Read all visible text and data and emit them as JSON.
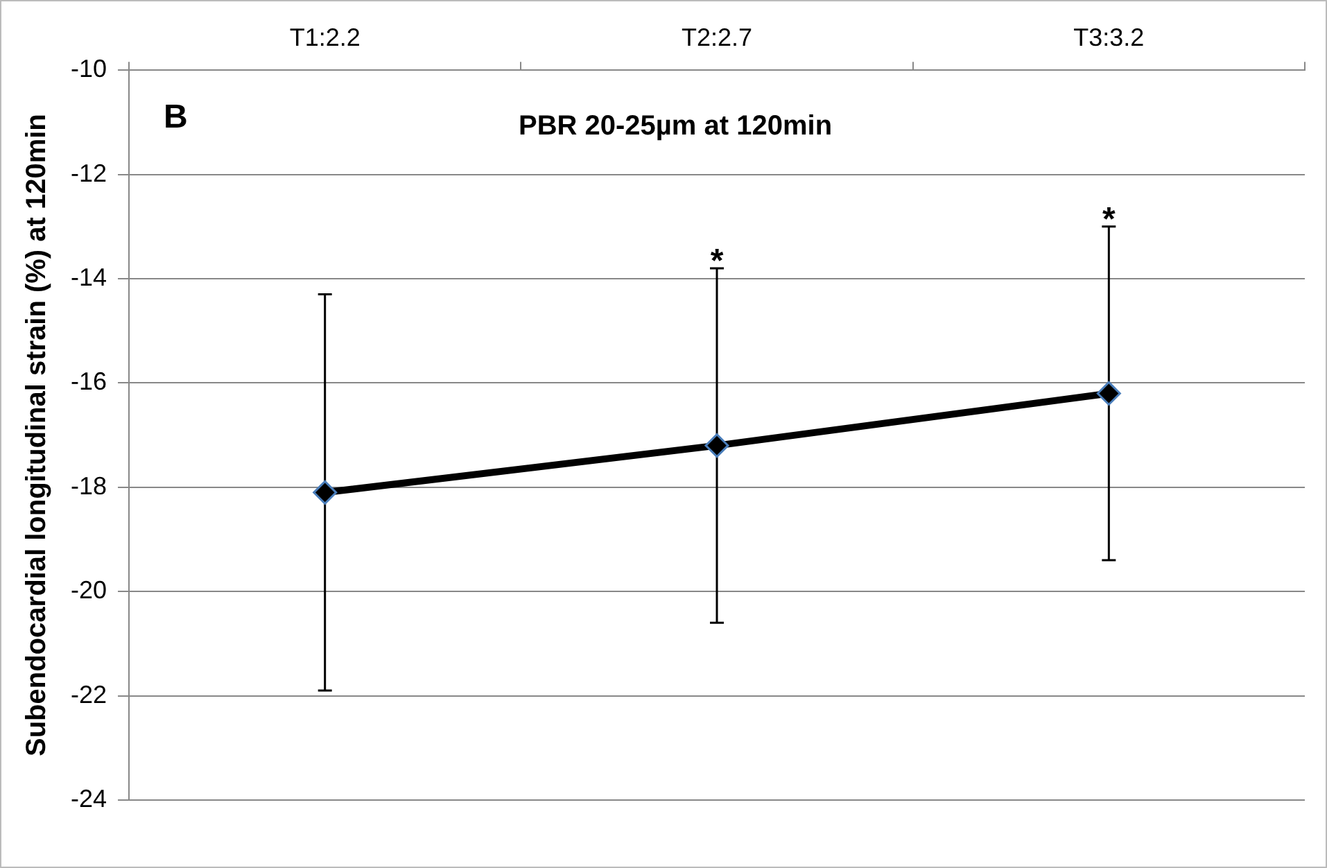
{
  "chart_data": {
    "type": "line",
    "title": "PBR 20-25µm at 120min",
    "ylabel": "Subendocardial longitudinal strain (%) at 120min",
    "categories": [
      "T1:2.2",
      "T2:2.7",
      "T3:3.2"
    ],
    "series": [
      {
        "color": "#000000",
        "values": [
          -18.1,
          -17.2,
          -16.2
        ],
        "errors": [
          3.8,
          3.4,
          3.2
        ]
      }
    ],
    "ylim": [
      -24,
      -10
    ],
    "yticks": [
      -24,
      -22,
      -20,
      -18,
      -16,
      -14,
      -12,
      -10
    ],
    "grid": "y",
    "legend": false,
    "marker": "diamond",
    "line_style": "solid",
    "annotations": [
      "B",
      {
        "text": "*",
        "x": "T2:2.7",
        "y": -13.8
      },
      {
        "text": "*",
        "x": "T3:3.2",
        "y": -13.0
      }
    ]
  }
}
